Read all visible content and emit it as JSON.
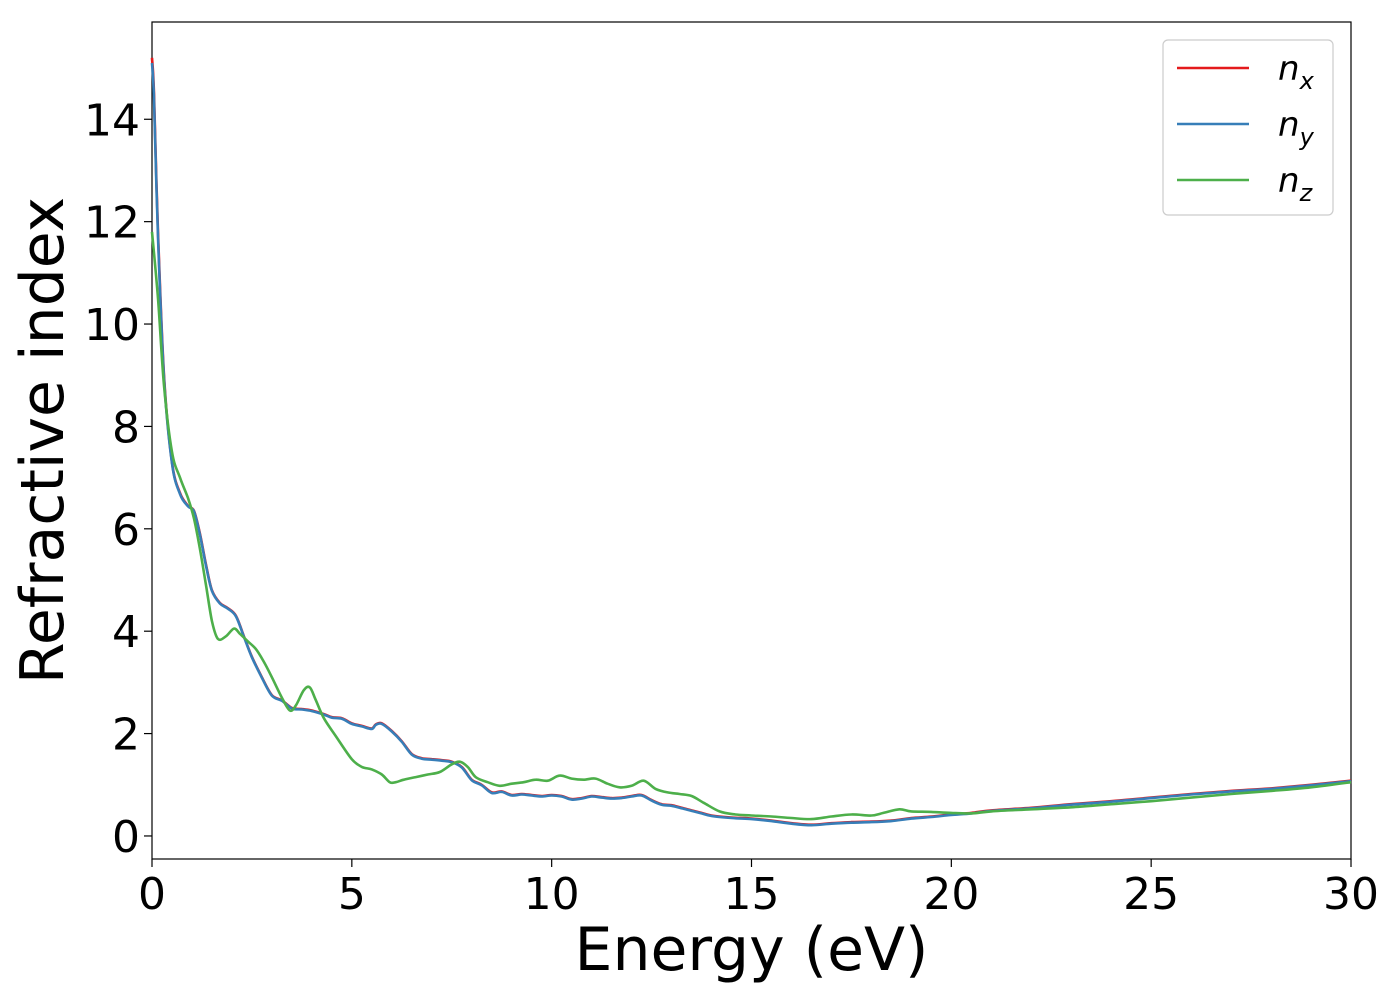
{
  "chart_data": {
    "type": "line",
    "title": "",
    "xlabel": "Energy (eV)",
    "ylabel": "Refractive index",
    "xlim": [
      0,
      30
    ],
    "ylim": [
      -0.45,
      15.9
    ],
    "xticks": [
      0,
      5,
      10,
      15,
      20,
      25,
      30
    ],
    "yticks": [
      0,
      2,
      4,
      6,
      8,
      10,
      12,
      14
    ],
    "grid": false,
    "legend_position": "top-right",
    "series": [
      {
        "name": "n",
        "subscript": "x",
        "color": "#e41a1c",
        "x": [
          0,
          0.05,
          0.15,
          0.3,
          0.5,
          0.7,
          0.9,
          1.05,
          1.2,
          1.35,
          1.5,
          1.7,
          1.9,
          2.1,
          2.3,
          2.5,
          2.75,
          3.0,
          3.25,
          3.5,
          3.75,
          4.0,
          4.3,
          4.5,
          4.75,
          5.0,
          5.25,
          5.5,
          5.6,
          5.75,
          6.0,
          6.25,
          6.5,
          6.75,
          7.0,
          7.25,
          7.5,
          7.75,
          8.0,
          8.25,
          8.5,
          8.75,
          9.0,
          9.25,
          9.5,
          9.75,
          10.0,
          10.25,
          10.5,
          10.75,
          11.0,
          11.25,
          11.5,
          11.75,
          12.0,
          12.25,
          12.5,
          12.75,
          13.0,
          13.25,
          13.5,
          13.75,
          14.0,
          14.5,
          15.0,
          15.5,
          16.0,
          16.5,
          17.0,
          17.5,
          18.0,
          18.5,
          19.0,
          19.5,
          20.0,
          20.5,
          21.0,
          22.0,
          23.0,
          24.0,
          25.0,
          26.0,
          27.0,
          28.0,
          29.0,
          30.0
        ],
        "y": [
          15.2,
          14.5,
          11.8,
          9.0,
          7.3,
          6.7,
          6.45,
          6.35,
          5.9,
          5.3,
          4.8,
          4.55,
          4.45,
          4.3,
          3.9,
          3.5,
          3.1,
          2.75,
          2.65,
          2.5,
          2.48,
          2.45,
          2.38,
          2.32,
          2.3,
          2.2,
          2.15,
          2.1,
          2.18,
          2.2,
          2.05,
          1.85,
          1.6,
          1.52,
          1.5,
          1.48,
          1.45,
          1.35,
          1.1,
          1.0,
          0.85,
          0.87,
          0.8,
          0.82,
          0.8,
          0.78,
          0.8,
          0.78,
          0.72,
          0.74,
          0.78,
          0.76,
          0.74,
          0.75,
          0.78,
          0.8,
          0.7,
          0.62,
          0.6,
          0.55,
          0.5,
          0.45,
          0.4,
          0.36,
          0.34,
          0.3,
          0.25,
          0.22,
          0.25,
          0.27,
          0.28,
          0.3,
          0.35,
          0.38,
          0.42,
          0.45,
          0.5,
          0.55,
          0.62,
          0.68,
          0.75,
          0.82,
          0.88,
          0.93,
          1.0,
          1.08
        ]
      },
      {
        "name": "n",
        "subscript": "y",
        "color": "#377eb8",
        "x": [
          0,
          0.05,
          0.15,
          0.3,
          0.5,
          0.7,
          0.9,
          1.05,
          1.2,
          1.35,
          1.5,
          1.7,
          1.9,
          2.1,
          2.3,
          2.5,
          2.75,
          3.0,
          3.25,
          3.5,
          3.75,
          4.0,
          4.3,
          4.5,
          4.75,
          5.0,
          5.25,
          5.5,
          5.6,
          5.75,
          6.0,
          6.25,
          6.5,
          6.75,
          7.0,
          7.25,
          7.5,
          7.75,
          8.0,
          8.25,
          8.5,
          8.75,
          9.0,
          9.25,
          9.5,
          9.75,
          10.0,
          10.25,
          10.5,
          10.75,
          11.0,
          11.25,
          11.5,
          11.75,
          12.0,
          12.25,
          12.5,
          12.75,
          13.0,
          13.25,
          13.5,
          13.75,
          14.0,
          14.5,
          15.0,
          15.5,
          16.0,
          16.5,
          17.0,
          17.5,
          18.0,
          18.5,
          19.0,
          19.5,
          20.0,
          20.5,
          21.0,
          22.0,
          23.0,
          24.0,
          25.0,
          26.0,
          27.0,
          28.0,
          29.0,
          30.0
        ],
        "y": [
          15.1,
          14.4,
          11.7,
          8.95,
          7.28,
          6.68,
          6.44,
          6.34,
          5.88,
          5.28,
          4.79,
          4.54,
          4.44,
          4.29,
          3.89,
          3.49,
          3.09,
          2.74,
          2.64,
          2.49,
          2.47,
          2.44,
          2.37,
          2.31,
          2.29,
          2.19,
          2.14,
          2.09,
          2.17,
          2.19,
          2.04,
          1.84,
          1.59,
          1.51,
          1.49,
          1.47,
          1.44,
          1.34,
          1.09,
          0.99,
          0.84,
          0.86,
          0.79,
          0.81,
          0.79,
          0.77,
          0.79,
          0.77,
          0.71,
          0.73,
          0.77,
          0.75,
          0.73,
          0.74,
          0.77,
          0.79,
          0.69,
          0.61,
          0.59,
          0.54,
          0.49,
          0.44,
          0.39,
          0.35,
          0.33,
          0.29,
          0.24,
          0.21,
          0.24,
          0.26,
          0.27,
          0.29,
          0.34,
          0.37,
          0.41,
          0.44,
          0.49,
          0.54,
          0.61,
          0.67,
          0.74,
          0.81,
          0.87,
          0.92,
          0.99,
          1.07
        ]
      },
      {
        "name": "n",
        "subscript": "z",
        "color": "#4daf4a",
        "x": [
          0,
          0.15,
          0.3,
          0.5,
          0.7,
          0.9,
          1.05,
          1.2,
          1.35,
          1.5,
          1.65,
          1.85,
          2.05,
          2.2,
          2.4,
          2.6,
          2.8,
          3.0,
          3.25,
          3.45,
          3.6,
          3.8,
          3.95,
          4.1,
          4.3,
          4.6,
          5.0,
          5.25,
          5.5,
          5.75,
          5.95,
          6.1,
          6.3,
          6.6,
          6.9,
          7.2,
          7.5,
          7.7,
          7.9,
          8.1,
          8.4,
          8.7,
          9.0,
          9.3,
          9.6,
          9.9,
          10.2,
          10.5,
          10.8,
          11.1,
          11.4,
          11.7,
          12.0,
          12.3,
          12.6,
          12.9,
          13.2,
          13.5,
          13.8,
          14.2,
          14.6,
          15.0,
          15.5,
          16.0,
          16.5,
          17.0,
          17.5,
          18.0,
          18.3,
          18.7,
          19.0,
          19.5,
          20.0,
          20.5,
          21.0,
          22.0,
          23.0,
          24.0,
          25.0,
          26.0,
          27.0,
          28.0,
          29.0,
          30.0
        ],
        "y": [
          11.8,
          10.5,
          8.8,
          7.5,
          7.0,
          6.6,
          6.2,
          5.6,
          4.9,
          4.2,
          3.85,
          3.9,
          4.05,
          3.95,
          3.8,
          3.65,
          3.4,
          3.1,
          2.7,
          2.45,
          2.55,
          2.85,
          2.9,
          2.65,
          2.3,
          1.95,
          1.5,
          1.35,
          1.3,
          1.2,
          1.05,
          1.05,
          1.1,
          1.15,
          1.2,
          1.25,
          1.4,
          1.45,
          1.35,
          1.15,
          1.05,
          0.98,
          1.02,
          1.05,
          1.1,
          1.08,
          1.18,
          1.12,
          1.1,
          1.12,
          1.02,
          0.95,
          0.98,
          1.08,
          0.92,
          0.85,
          0.82,
          0.78,
          0.65,
          0.48,
          0.42,
          0.4,
          0.38,
          0.35,
          0.33,
          0.38,
          0.42,
          0.4,
          0.45,
          0.52,
          0.48,
          0.47,
          0.45,
          0.44,
          0.48,
          0.52,
          0.56,
          0.62,
          0.68,
          0.75,
          0.82,
          0.88,
          0.95,
          1.05
        ]
      }
    ]
  }
}
